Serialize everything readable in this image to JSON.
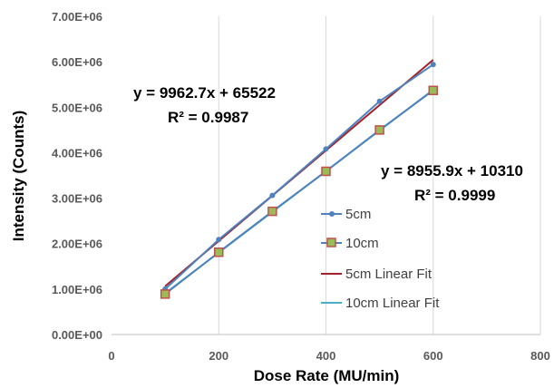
{
  "chart_data": {
    "type": "scatter",
    "xlabel": "Dose Rate (MU/min)",
    "ylabel": "Intensity (Counts)",
    "xlim": [
      0,
      800
    ],
    "ylim": [
      0,
      7000000
    ],
    "x_ticks": [
      "0",
      "200",
      "400",
      "600",
      "800"
    ],
    "y_ticks": [
      "0.00E+00",
      "1.00E+06",
      "2.00E+06",
      "3.00E+06",
      "4.00E+06",
      "5.00E+06",
      "6.00E+06",
      "7.00E+06"
    ],
    "grid": "vertical",
    "legend_position": "center-right",
    "series": [
      {
        "name": "5cm",
        "kind": "points",
        "marker": "circle",
        "color": "#4F81BD",
        "x": [
          100,
          200,
          300,
          400,
          500,
          600
        ],
        "y": [
          1000000,
          2090000,
          3060000,
          4080000,
          5130000,
          5940000
        ]
      },
      {
        "name": "10cm",
        "kind": "points",
        "marker": "square",
        "color": "#9BBB59",
        "edge_color": "#C0504D",
        "x": [
          100,
          200,
          300,
          400,
          500,
          600
        ],
        "y": [
          890000,
          1810000,
          2710000,
          3590000,
          4500000,
          5370000
        ]
      },
      {
        "name": "5cm Linear Fit",
        "kind": "fit",
        "color": "#A0222A",
        "x": [
          100,
          600
        ],
        "y": [
          1061792,
          6043142
        ]
      },
      {
        "name": "10cm Linear Fit",
        "kind": "fit",
        "color": "#4BACC6",
        "x": [
          100,
          600
        ],
        "y": [
          905900,
          5383850
        ]
      }
    ],
    "annotations": [
      {
        "line1": "y = 9962.7x + 65522",
        "line2": "R² = 0.9987"
      },
      {
        "line1": "y = 8955.9x + 10310",
        "line2": "R² = 0.9999"
      }
    ]
  }
}
